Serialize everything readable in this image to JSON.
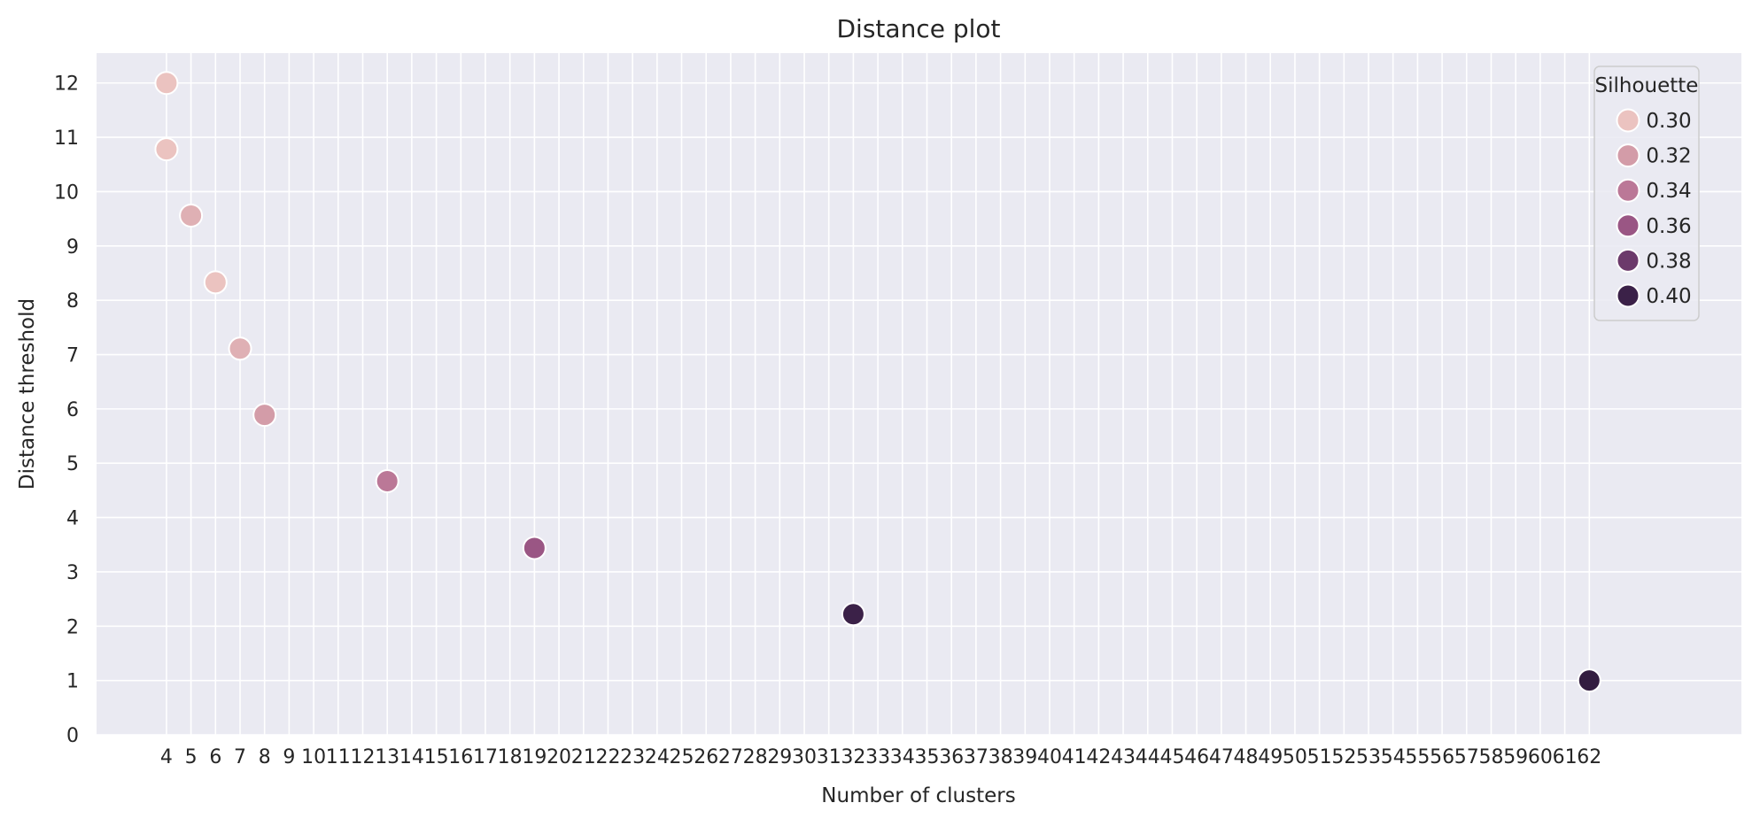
{
  "chart_data": {
    "type": "scatter",
    "title": "Distance plot",
    "xlabel": "Number of clusters",
    "ylabel": "Distance threshold",
    "x_ticks": [
      "4",
      "5",
      "6",
      "7",
      "8",
      "9",
      "10",
      "11",
      "12",
      "13",
      "14",
      "15",
      "16",
      "17",
      "18",
      "19",
      "20",
      "21",
      "22",
      "23",
      "24",
      "25",
      "26",
      "27",
      "28",
      "29",
      "30",
      "31",
      "32",
      "33",
      "34",
      "35",
      "36",
      "37",
      "38",
      "39",
      "40",
      "41",
      "42",
      "43",
      "44",
      "45",
      "46",
      "47",
      "48",
      "49",
      "50",
      "51",
      "52",
      "53",
      "54",
      "55",
      "56",
      "57",
      "58",
      "59",
      "60",
      "61",
      "62"
    ],
    "xlim": [
      1.15,
      68.2
    ],
    "y_ticks": [
      0,
      1,
      2,
      3,
      4,
      5,
      6,
      7,
      8,
      9,
      10,
      11,
      12
    ],
    "ylim": [
      0,
      12.55
    ],
    "grid": true,
    "points": [
      {
        "x": 4,
        "y": 12.0,
        "silhouette": 0.3
      },
      {
        "x": 4,
        "y": 10.78,
        "silhouette": 0.3
      },
      {
        "x": 5,
        "y": 9.56,
        "silhouette": 0.31
      },
      {
        "x": 6,
        "y": 8.33,
        "silhouette": 0.3
      },
      {
        "x": 7,
        "y": 7.11,
        "silhouette": 0.31
      },
      {
        "x": 8,
        "y": 5.89,
        "silhouette": 0.32
      },
      {
        "x": 13,
        "y": 4.67,
        "silhouette": 0.34
      },
      {
        "x": 19,
        "y": 3.44,
        "silhouette": 0.36
      },
      {
        "x": 32,
        "y": 2.22,
        "silhouette": 0.4
      },
      {
        "x": 62,
        "y": 1.0,
        "silhouette": 0.405
      }
    ],
    "legend": {
      "title": "Silhouette",
      "position": "top-right",
      "entries": [
        {
          "label": "0.30",
          "value": 0.3
        },
        {
          "label": "0.32",
          "value": 0.32
        },
        {
          "label": "0.34",
          "value": 0.34
        },
        {
          "label": "0.36",
          "value": 0.36
        },
        {
          "label": "0.38",
          "value": 0.38
        },
        {
          "label": "0.40",
          "value": 0.4
        }
      ]
    },
    "colors": {
      "plot_background": "#eaeaf2",
      "grid": "#ffffff",
      "colormap": [
        {
          "v": 0.3,
          "c": "#ebc3c0"
        },
        {
          "v": 0.32,
          "c": "#d39ca8"
        },
        {
          "v": 0.34,
          "c": "#bb7897"
        },
        {
          "v": 0.36,
          "c": "#9a5684"
        },
        {
          "v": 0.38,
          "c": "#6c3a6b"
        },
        {
          "v": 0.4,
          "c": "#3b2148"
        },
        {
          "v": 0.41,
          "c": "#2c1a38"
        }
      ]
    }
  }
}
